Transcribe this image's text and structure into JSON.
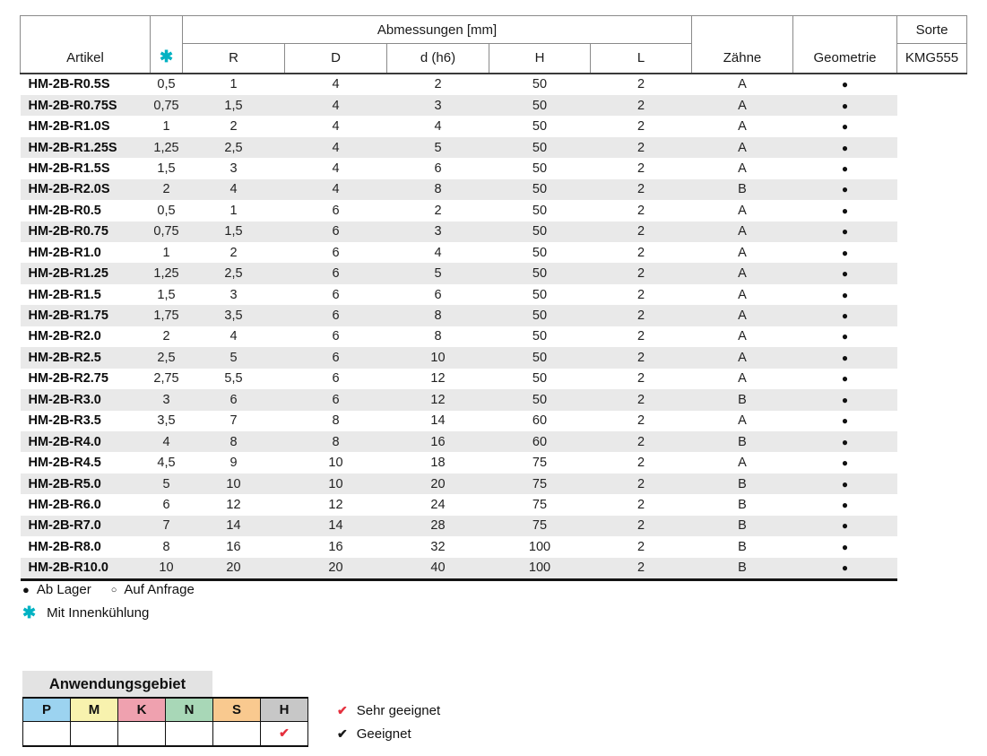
{
  "colors": {
    "accent_teal": "#00b2c3",
    "check_red": "#e5303e",
    "check_black": "#1a1a1a",
    "stripe_gray": "#e9e9e9",
    "title_bar_gray": "#e3e3e3"
  },
  "table": {
    "header": {
      "artikel": "Artikel",
      "star_icon": "✱",
      "abmessungen": "Abmessungen [mm]",
      "dim_cols": [
        "R",
        "D",
        "d (h6)",
        "H",
        "L"
      ],
      "zaehne": "Zähne",
      "geometrie": "Geometrie",
      "sorte": "Sorte",
      "sorte_sub": "KMG555"
    },
    "rows": [
      [
        "HM-2B-R0.5S",
        "0,5",
        "1",
        "4",
        "2",
        "50",
        "2",
        "A",
        "●"
      ],
      [
        "HM-2B-R0.75S",
        "0,75",
        "1,5",
        "4",
        "3",
        "50",
        "2",
        "A",
        "●"
      ],
      [
        "HM-2B-R1.0S",
        "1",
        "2",
        "4",
        "4",
        "50",
        "2",
        "A",
        "●"
      ],
      [
        "HM-2B-R1.25S",
        "1,25",
        "2,5",
        "4",
        "5",
        "50",
        "2",
        "A",
        "●"
      ],
      [
        "HM-2B-R1.5S",
        "1,5",
        "3",
        "4",
        "6",
        "50",
        "2",
        "A",
        "●"
      ],
      [
        "HM-2B-R2.0S",
        "2",
        "4",
        "4",
        "8",
        "50",
        "2",
        "B",
        "●"
      ],
      [
        "HM-2B-R0.5",
        "0,5",
        "1",
        "6",
        "2",
        "50",
        "2",
        "A",
        "●"
      ],
      [
        "HM-2B-R0.75",
        "0,75",
        "1,5",
        "6",
        "3",
        "50",
        "2",
        "A",
        "●"
      ],
      [
        "HM-2B-R1.0",
        "1",
        "2",
        "6",
        "4",
        "50",
        "2",
        "A",
        "●"
      ],
      [
        "HM-2B-R1.25",
        "1,25",
        "2,5",
        "6",
        "5",
        "50",
        "2",
        "A",
        "●"
      ],
      [
        "HM-2B-R1.5",
        "1,5",
        "3",
        "6",
        "6",
        "50",
        "2",
        "A",
        "●"
      ],
      [
        "HM-2B-R1.75",
        "1,75",
        "3,5",
        "6",
        "8",
        "50",
        "2",
        "A",
        "●"
      ],
      [
        "HM-2B-R2.0",
        "2",
        "4",
        "6",
        "8",
        "50",
        "2",
        "A",
        "●"
      ],
      [
        "HM-2B-R2.5",
        "2,5",
        "5",
        "6",
        "10",
        "50",
        "2",
        "A",
        "●"
      ],
      [
        "HM-2B-R2.75",
        "2,75",
        "5,5",
        "6",
        "12",
        "50",
        "2",
        "A",
        "●"
      ],
      [
        "HM-2B-R3.0",
        "3",
        "6",
        "6",
        "12",
        "50",
        "2",
        "B",
        "●"
      ],
      [
        "HM-2B-R3.5",
        "3,5",
        "7",
        "8",
        "14",
        "60",
        "2",
        "A",
        "●"
      ],
      [
        "HM-2B-R4.0",
        "4",
        "8",
        "8",
        "16",
        "60",
        "2",
        "B",
        "●"
      ],
      [
        "HM-2B-R4.5",
        "4,5",
        "9",
        "10",
        "18",
        "75",
        "2",
        "A",
        "●"
      ],
      [
        "HM-2B-R5.0",
        "5",
        "10",
        "10",
        "20",
        "75",
        "2",
        "B",
        "●"
      ],
      [
        "HM-2B-R6.0",
        "6",
        "12",
        "12",
        "24",
        "75",
        "2",
        "B",
        "●"
      ],
      [
        "HM-2B-R7.0",
        "7",
        "14",
        "14",
        "28",
        "75",
        "2",
        "B",
        "●"
      ],
      [
        "HM-2B-R8.0",
        "8",
        "16",
        "16",
        "32",
        "100",
        "2",
        "B",
        "●"
      ],
      [
        "HM-2B-R10.0",
        "10",
        "20",
        "20",
        "40",
        "100",
        "2",
        "B",
        "●"
      ]
    ]
  },
  "legend": {
    "stock_filled_icon": "●",
    "stock_filled_label": "Ab Lager",
    "stock_open_icon": "○",
    "stock_open_label": "Auf Anfrage",
    "coolant_icon": "✱",
    "coolant_label": "Mit Innenkühlung"
  },
  "anwendungsgebiet": {
    "title": "Anwendungsgebiet",
    "columns": [
      {
        "label": "P",
        "color": "#9cd3f0",
        "checked": false
      },
      {
        "label": "M",
        "color": "#f8f2ae",
        "checked": false
      },
      {
        "label": "K",
        "color": "#efa1af",
        "checked": false
      },
      {
        "label": "N",
        "color": "#a8d7b7",
        "checked": false
      },
      {
        "label": "S",
        "color": "#f9c98f",
        "checked": false
      },
      {
        "label": "H",
        "color": "#c7c7c7",
        "checked": true
      }
    ],
    "check_icon": "✔",
    "legend": [
      {
        "icon": "✔",
        "label": "Sehr geeignet",
        "style": "red"
      },
      {
        "icon": "✔",
        "label": "Geeignet",
        "style": "black"
      }
    ]
  }
}
